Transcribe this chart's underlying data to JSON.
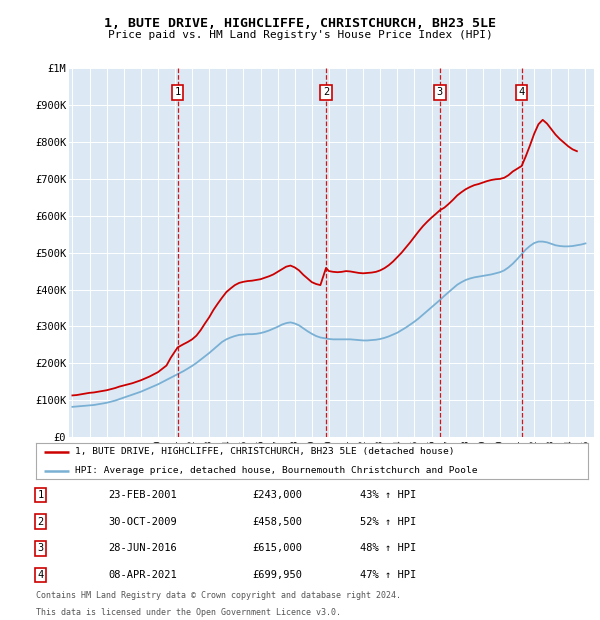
{
  "title": "1, BUTE DRIVE, HIGHCLIFFE, CHRISTCHURCH, BH23 5LE",
  "subtitle": "Price paid vs. HM Land Registry's House Price Index (HPI)",
  "plot_bg_color": "#dce9f5",
  "ylim": [
    0,
    1000000
  ],
  "yticks": [
    0,
    100000,
    200000,
    300000,
    400000,
    500000,
    600000,
    700000,
    800000,
    900000,
    1000000
  ],
  "ytick_labels": [
    "£0",
    "£100K",
    "£200K",
    "£300K",
    "£400K",
    "£500K",
    "£600K",
    "£700K",
    "£800K",
    "£900K",
    "£1M"
  ],
  "xmin": 1994.8,
  "xmax": 2025.5,
  "red_line_color": "#cc0000",
  "blue_line_color": "#7ab0d4",
  "legend_line1": "1, BUTE DRIVE, HIGHCLIFFE, CHRISTCHURCH, BH23 5LE (detached house)",
  "legend_line2": "HPI: Average price, detached house, Bournemouth Christchurch and Poole",
  "sales": [
    {
      "num": 1,
      "date": "23-FEB-2001",
      "price": "£243,000",
      "pct": "43% ↑ HPI",
      "year": 2001.15
    },
    {
      "num": 2,
      "date": "30-OCT-2009",
      "price": "£458,500",
      "pct": "52% ↑ HPI",
      "year": 2009.83
    },
    {
      "num": 3,
      "date": "28-JUN-2016",
      "price": "£615,000",
      "pct": "48% ↑ HPI",
      "year": 2016.49
    },
    {
      "num": 4,
      "date": "08-APR-2021",
      "price": "£699,950",
      "pct": "47% ↑ HPI",
      "year": 2021.27
    }
  ],
  "footer1": "Contains HM Land Registry data © Crown copyright and database right 2024.",
  "footer2": "This data is licensed under the Open Government Licence v3.0.",
  "red_x": [
    1995.0,
    1995.25,
    1995.5,
    1995.75,
    1996.0,
    1996.25,
    1996.5,
    1996.75,
    1997.0,
    1997.25,
    1997.5,
    1997.75,
    1998.0,
    1998.25,
    1998.5,
    1998.75,
    1999.0,
    1999.25,
    1999.5,
    1999.75,
    2000.0,
    2000.25,
    2000.5,
    2000.75,
    2001.15,
    2001.5,
    2001.75,
    2002.0,
    2002.25,
    2002.5,
    2002.75,
    2003.0,
    2003.25,
    2003.5,
    2003.75,
    2004.0,
    2004.25,
    2004.5,
    2004.75,
    2005.0,
    2005.25,
    2005.5,
    2005.75,
    2006.0,
    2006.25,
    2006.5,
    2006.75,
    2007.0,
    2007.25,
    2007.5,
    2007.75,
    2008.0,
    2008.25,
    2008.5,
    2008.75,
    2009.0,
    2009.25,
    2009.5,
    2009.83,
    2010.0,
    2010.25,
    2010.5,
    2010.75,
    2011.0,
    2011.25,
    2011.5,
    2011.75,
    2012.0,
    2012.25,
    2012.5,
    2012.75,
    2013.0,
    2013.25,
    2013.5,
    2013.75,
    2014.0,
    2014.25,
    2014.5,
    2014.75,
    2015.0,
    2015.25,
    2015.5,
    2015.75,
    2016.0,
    2016.25,
    2016.49,
    2016.75,
    2017.0,
    2017.25,
    2017.5,
    2017.75,
    2018.0,
    2018.25,
    2018.5,
    2018.75,
    2019.0,
    2019.25,
    2019.5,
    2019.75,
    2020.0,
    2020.25,
    2020.5,
    2020.75,
    2021.27,
    2021.5,
    2021.75,
    2022.0,
    2022.25,
    2022.5,
    2022.75,
    2023.0,
    2023.25,
    2023.5,
    2023.75,
    2024.0,
    2024.25,
    2024.5
  ],
  "red_y": [
    113000,
    114000,
    116000,
    118000,
    120000,
    121000,
    123000,
    125000,
    127000,
    130000,
    133000,
    137000,
    140000,
    143000,
    146000,
    150000,
    154000,
    159000,
    164000,
    170000,
    176000,
    185000,
    194000,
    215000,
    243000,
    252000,
    258000,
    265000,
    275000,
    290000,
    308000,
    325000,
    345000,
    362000,
    378000,
    393000,
    403000,
    412000,
    418000,
    421000,
    423000,
    424000,
    426000,
    428000,
    432000,
    436000,
    441000,
    448000,
    455000,
    462000,
    465000,
    460000,
    452000,
    440000,
    430000,
    420000,
    415000,
    412000,
    458500,
    450000,
    448000,
    447000,
    448000,
    450000,
    449000,
    447000,
    445000,
    444000,
    445000,
    446000,
    448000,
    452000,
    458000,
    466000,
    476000,
    488000,
    500000,
    514000,
    528000,
    543000,
    558000,
    572000,
    584000,
    595000,
    605000,
    615000,
    622000,
    632000,
    643000,
    655000,
    664000,
    672000,
    678000,
    683000,
    686000,
    690000,
    694000,
    697000,
    699000,
    699950,
    703000,
    710000,
    720000,
    735000,
    760000,
    790000,
    822000,
    848000,
    860000,
    850000,
    835000,
    820000,
    808000,
    798000,
    788000,
    780000,
    775000
  ],
  "blue_x": [
    1995.0,
    1995.25,
    1995.5,
    1995.75,
    1996.0,
    1996.25,
    1996.5,
    1996.75,
    1997.0,
    1997.25,
    1997.5,
    1997.75,
    1998.0,
    1998.25,
    1998.5,
    1998.75,
    1999.0,
    1999.25,
    1999.5,
    1999.75,
    2000.0,
    2000.25,
    2000.5,
    2000.75,
    2001.0,
    2001.25,
    2001.5,
    2001.75,
    2002.0,
    2002.25,
    2002.5,
    2002.75,
    2003.0,
    2003.25,
    2003.5,
    2003.75,
    2004.0,
    2004.25,
    2004.5,
    2004.75,
    2005.0,
    2005.25,
    2005.5,
    2005.75,
    2006.0,
    2006.25,
    2006.5,
    2006.75,
    2007.0,
    2007.25,
    2007.5,
    2007.75,
    2008.0,
    2008.25,
    2008.5,
    2008.75,
    2009.0,
    2009.25,
    2009.5,
    2009.75,
    2010.0,
    2010.25,
    2010.5,
    2010.75,
    2011.0,
    2011.25,
    2011.5,
    2011.75,
    2012.0,
    2012.25,
    2012.5,
    2012.75,
    2013.0,
    2013.25,
    2013.5,
    2013.75,
    2014.0,
    2014.25,
    2014.5,
    2014.75,
    2015.0,
    2015.25,
    2015.5,
    2015.75,
    2016.0,
    2016.25,
    2016.5,
    2016.75,
    2017.0,
    2017.25,
    2017.5,
    2017.75,
    2018.0,
    2018.25,
    2018.5,
    2018.75,
    2019.0,
    2019.25,
    2019.5,
    2019.75,
    2020.0,
    2020.25,
    2020.5,
    2020.75,
    2021.0,
    2021.25,
    2021.5,
    2021.75,
    2022.0,
    2022.25,
    2022.5,
    2022.75,
    2023.0,
    2023.25,
    2023.5,
    2023.75,
    2024.0,
    2024.25,
    2024.5,
    2024.75,
    2025.0
  ],
  "blue_y": [
    82000,
    83000,
    84000,
    85000,
    86000,
    87000,
    89000,
    91000,
    93000,
    96000,
    99000,
    103000,
    107000,
    111000,
    115000,
    119000,
    123000,
    128000,
    133000,
    138000,
    143000,
    149000,
    155000,
    161000,
    167000,
    173000,
    179000,
    186000,
    193000,
    201000,
    210000,
    219000,
    228000,
    238000,
    248000,
    258000,
    265000,
    270000,
    274000,
    277000,
    278000,
    279000,
    279000,
    280000,
    282000,
    285000,
    289000,
    294000,
    299000,
    305000,
    309000,
    311000,
    308000,
    303000,
    295000,
    287000,
    280000,
    274000,
    270000,
    268000,
    266000,
    265000,
    265000,
    265000,
    265000,
    265000,
    264000,
    263000,
    262000,
    262000,
    263000,
    264000,
    266000,
    269000,
    273000,
    278000,
    283000,
    290000,
    297000,
    305000,
    313000,
    322000,
    332000,
    342000,
    352000,
    362000,
    372000,
    383000,
    393000,
    403000,
    413000,
    420000,
    426000,
    430000,
    433000,
    435000,
    437000,
    439000,
    441000,
    444000,
    447000,
    452000,
    460000,
    470000,
    482000,
    495000,
    508000,
    518000,
    526000,
    530000,
    530000,
    528000,
    524000,
    520000,
    518000,
    517000,
    517000,
    518000,
    520000,
    522000,
    525000
  ]
}
